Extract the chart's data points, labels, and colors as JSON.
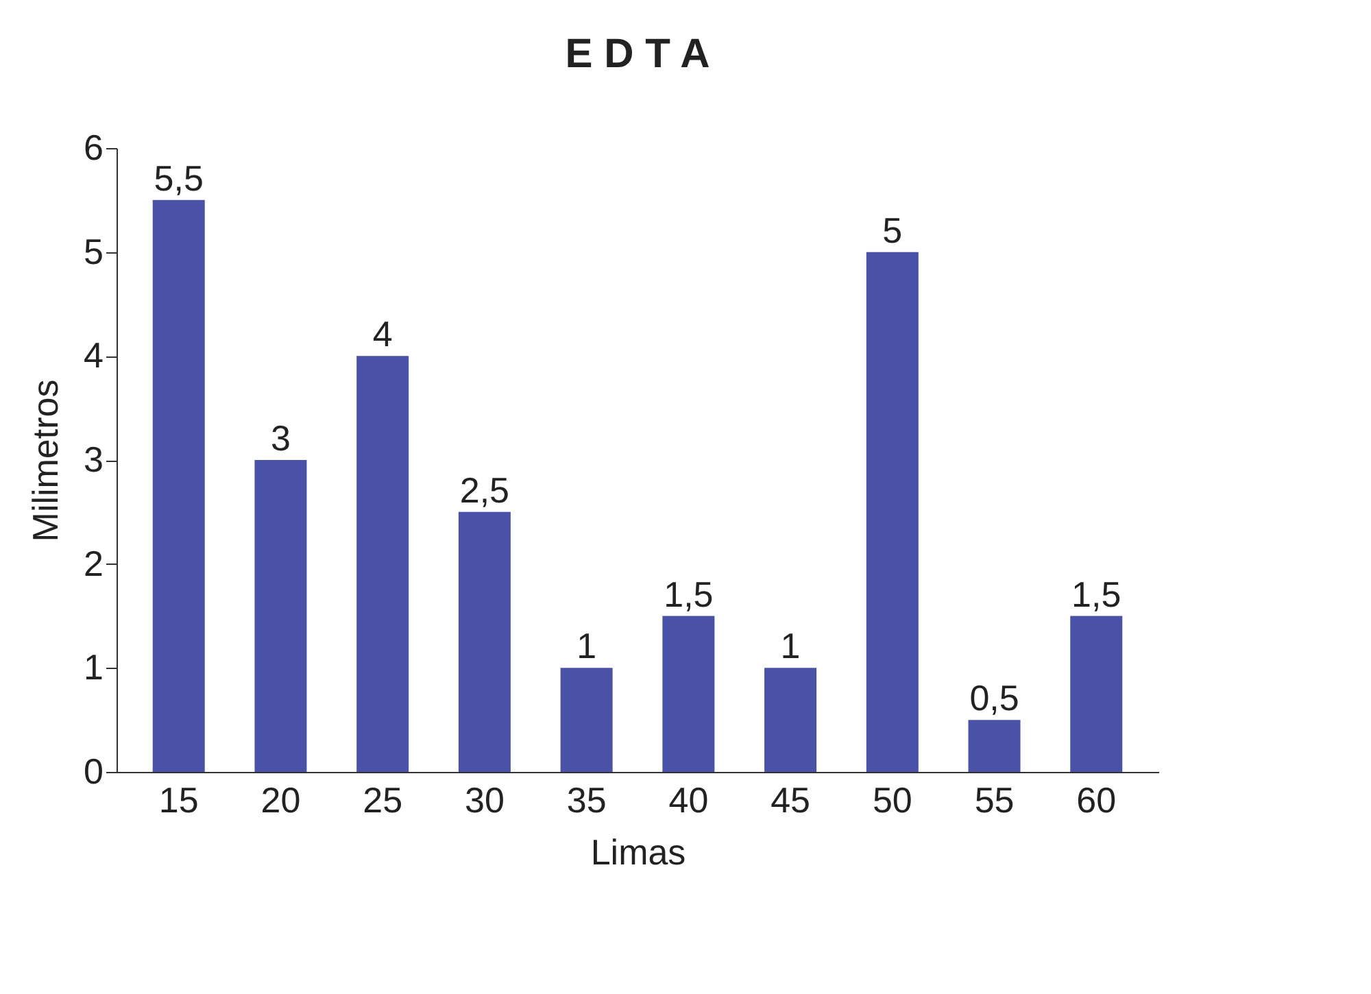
{
  "chart_data": {
    "type": "bar",
    "title": "E D T A",
    "xlabel": "Limas",
    "ylabel": "Milimetros",
    "categories": [
      "15",
      "20",
      "25",
      "30",
      "35",
      "40",
      "45",
      "50",
      "55",
      "60"
    ],
    "values": [
      5.5,
      3,
      4,
      2.5,
      1,
      1.5,
      1,
      5,
      0.5,
      1.5
    ],
    "value_labels": [
      "5,5",
      "3",
      "4",
      "2,5",
      "1",
      "1,5",
      "1",
      "5",
      "0,5",
      "1,5"
    ],
    "color": "#4a52a8",
    "ylim": [
      0,
      6
    ],
    "yticks": [
      0,
      1,
      2,
      3,
      4,
      5,
      6
    ],
    "grid": false
  }
}
